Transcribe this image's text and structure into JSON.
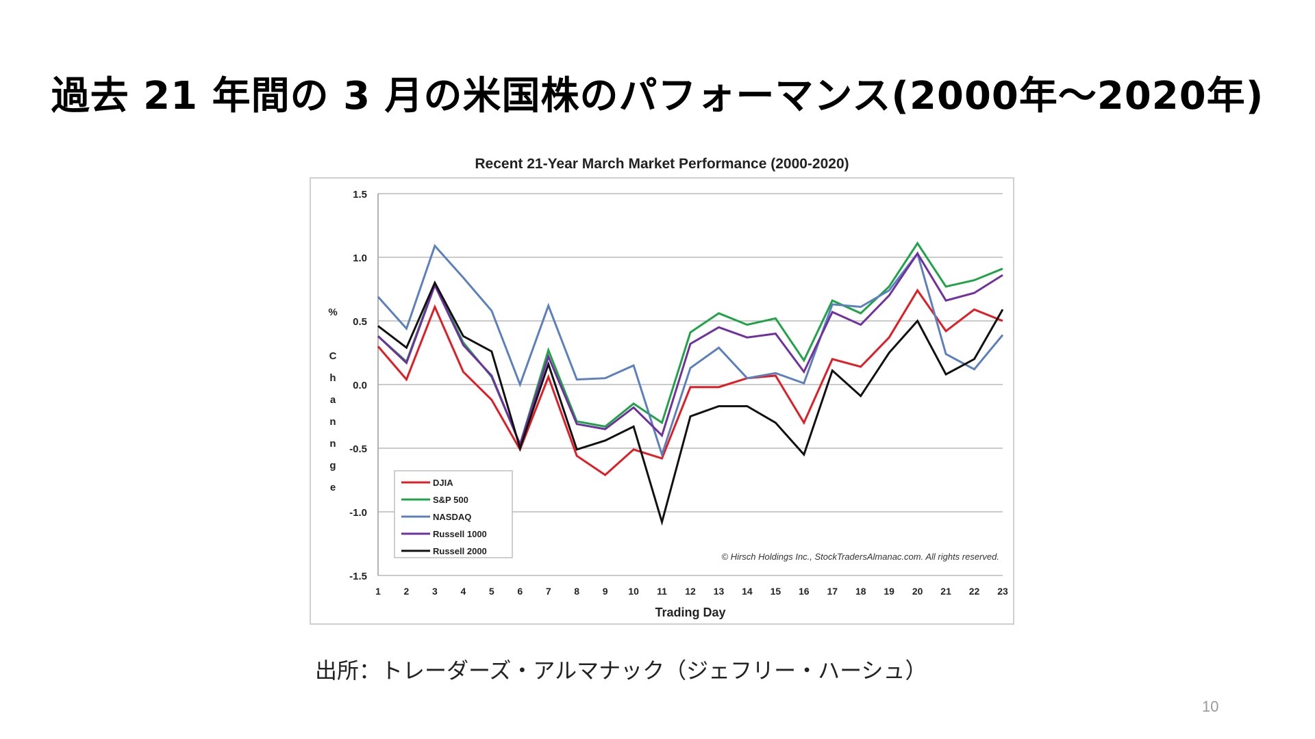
{
  "slide": {
    "title": "過去 21 年間の 3 月の米国株のパフォーマンス(2000年～2020年)",
    "source": "出所：トレーダーズ・アルマナック（ジェフリー・ハーシュ）",
    "page_number": "10"
  },
  "chart_data": {
    "type": "line",
    "title": "Recent 21-Year March Market Performance (2000-2020)",
    "xlabel": "Trading Day",
    "ylabel_top": "%",
    "ylabel_letters": [
      "C",
      "h",
      "a",
      "n",
      "n",
      "g",
      "e"
    ],
    "x": [
      1,
      2,
      3,
      4,
      5,
      6,
      7,
      8,
      9,
      10,
      11,
      12,
      13,
      14,
      15,
      16,
      17,
      18,
      19,
      20,
      21,
      22,
      23
    ],
    "x_tick_labels": [
      "1",
      "2",
      "3",
      "4",
      "5",
      "6",
      "7",
      "8",
      "9",
      "10",
      "11",
      "12",
      "13",
      "14",
      "15",
      "16",
      "17",
      "18",
      "19",
      "20",
      "21",
      "22",
      "23"
    ],
    "ylim": [
      -1.5,
      1.5
    ],
    "y_ticks": [
      1.5,
      1.0,
      0.5,
      0.0,
      -0.5,
      -1.0,
      -1.5
    ],
    "y_tick_labels": [
      "1.5",
      "1.0",
      "0.5",
      "0.0",
      "-0.5",
      "-1.0",
      "-1.5"
    ],
    "grid": true,
    "legend_position": "bottom-left",
    "copyright": "© Hirsch Holdings Inc., StockTradersAlmanac.com. All rights reserved.",
    "series": [
      {
        "name": "DJIA",
        "color": "#e31b23",
        "values": [
          0.3,
          0.04,
          0.61,
          0.1,
          -0.12,
          -0.51,
          0.06,
          -0.56,
          -0.71,
          -0.51,
          -0.58,
          -0.02,
          -0.02,
          0.05,
          0.07,
          -0.3,
          0.2,
          0.14,
          0.37,
          0.74,
          0.42,
          0.59,
          0.5
        ]
      },
      {
        "name": "S&P 500",
        "color": "#1ea446",
        "values": [
          0.38,
          0.18,
          0.79,
          0.33,
          0.06,
          -0.47,
          0.27,
          -0.29,
          -0.33,
          -0.15,
          -0.3,
          0.41,
          0.56,
          0.47,
          0.52,
          0.19,
          0.66,
          0.56,
          0.77,
          1.11,
          0.77,
          0.82,
          0.91
        ]
      },
      {
        "name": "NASDAQ",
        "color": "#5b80bd",
        "values": [
          0.69,
          0.44,
          1.09,
          0.84,
          0.58,
          0.0,
          0.62,
          0.04,
          0.05,
          0.15,
          -0.55,
          0.13,
          0.29,
          0.05,
          0.09,
          0.01,
          0.63,
          0.61,
          0.74,
          1.03,
          0.24,
          0.12,
          0.39
        ]
      },
      {
        "name": "Russell 1000",
        "color": "#7030a0",
        "values": [
          0.38,
          0.17,
          0.78,
          0.31,
          0.07,
          -0.47,
          0.22,
          -0.31,
          -0.35,
          -0.18,
          -0.4,
          0.32,
          0.45,
          0.37,
          0.4,
          0.1,
          0.57,
          0.47,
          0.7,
          1.03,
          0.66,
          0.72,
          0.86
        ]
      },
      {
        "name": "Russell 2000",
        "color": "#111111",
        "values": [
          0.46,
          0.29,
          0.8,
          0.38,
          0.26,
          -0.5,
          0.16,
          -0.51,
          -0.44,
          -0.33,
          -1.08,
          -0.25,
          -0.17,
          -0.17,
          -0.3,
          -0.55,
          0.11,
          -0.09,
          0.25,
          0.5,
          0.08,
          0.2,
          0.59
        ]
      }
    ]
  }
}
